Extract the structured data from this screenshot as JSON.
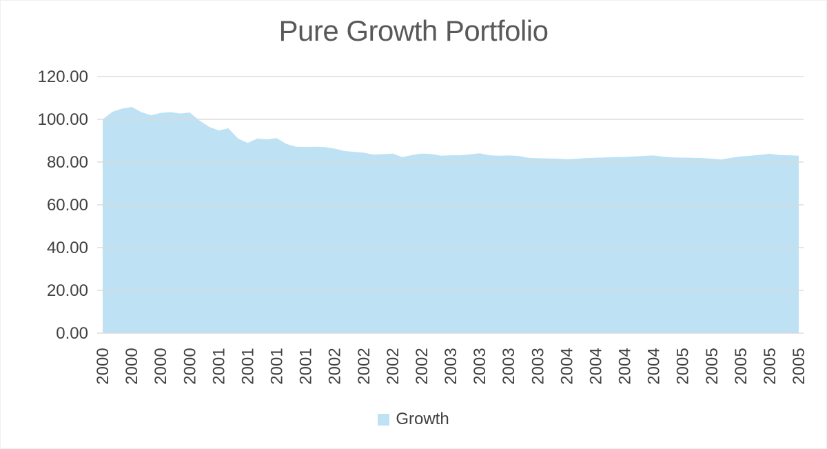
{
  "title": "Pure Growth Portfolio",
  "colors": {
    "area_fill": "#BEE2F4",
    "gridline": "#D9D9D9",
    "title_text": "#595959",
    "axis_text": "#404040",
    "background": "#FFFFFF"
  },
  "legend": {
    "position": "bottom",
    "items": [
      {
        "label": "Growth",
        "color": "#BEE2F4"
      }
    ]
  },
  "chart_data": {
    "type": "area",
    "title": "Pure Growth Portfolio",
    "grid": "horizontal",
    "legend_position": "bottom",
    "ylim": [
      0,
      120
    ],
    "y_ticks": [
      0,
      20,
      40,
      60,
      80,
      100,
      120
    ],
    "y_tick_labels": [
      "0.00",
      "20.00",
      "40.00",
      "60.00",
      "80.00",
      "100.00",
      "120.00"
    ],
    "x_tick_labels": [
      "2000",
      "2000",
      "2000",
      "2000",
      "2001",
      "2001",
      "2001",
      "2001",
      "2002",
      "2002",
      "2002",
      "2002",
      "2003",
      "2003",
      "2003",
      "2003",
      "2004",
      "2004",
      "2004",
      "2004",
      "2005",
      "2005",
      "2005",
      "2005",
      "2005"
    ],
    "x_label_note": "monthly series; one year tick label rendered every 3rd data point, labels rotated 90 degrees",
    "series": [
      {
        "name": "Growth",
        "values": [
          100.0,
          103.5,
          105.0,
          105.8,
          103.4,
          101.9,
          103.0,
          103.4,
          102.7,
          103.2,
          99.5,
          96.5,
          94.8,
          95.8,
          91.0,
          89.0,
          91.0,
          90.6,
          91.2,
          88.5,
          87.2,
          87.1,
          87.2,
          87.0,
          86.3,
          85.2,
          84.8,
          84.4,
          83.5,
          83.7,
          84.0,
          82.3,
          83.3,
          84.0,
          83.8,
          83.0,
          83.2,
          83.2,
          83.6,
          84.1,
          83.2,
          83.0,
          83.1,
          82.9,
          82.0,
          81.8,
          81.7,
          81.6,
          81.4,
          81.5,
          81.9,
          82.0,
          82.2,
          82.3,
          82.4,
          82.6,
          82.9,
          83.1,
          82.5,
          82.2,
          82.1,
          82.0,
          81.9,
          81.6,
          81.2,
          82.0,
          82.6,
          83.0,
          83.4,
          83.9,
          83.3,
          83.2,
          83.0
        ]
      }
    ]
  }
}
